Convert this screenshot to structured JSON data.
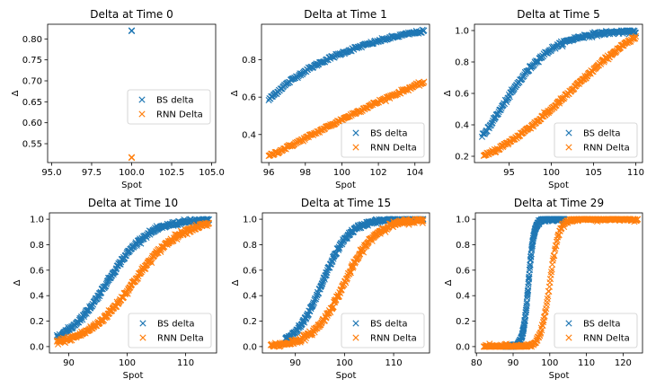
{
  "chart_data": [
    {
      "type": "scatter",
      "title": "Delta at Time 0",
      "xlabel": "Spot",
      "ylabel": "Δ",
      "xlim": [
        94.75,
        105.25
      ],
      "ylim": [
        0.505,
        0.835
      ],
      "xticks": [
        95.0,
        97.5,
        100.0,
        102.5,
        105.0
      ],
      "xtick_labels": [
        "95.0",
        "97.5",
        "100.0",
        "102.5",
        "105.0"
      ],
      "yticks": [
        0.55,
        0.6,
        0.65,
        0.7,
        0.75,
        0.8
      ],
      "ytick_labels": [
        "0.55",
        "0.60",
        "0.65",
        "0.70",
        "0.75",
        "0.80"
      ],
      "legend": "center-right",
      "series": [
        {
          "name": "BS delta",
          "color": "#1f77b4",
          "marker": "x",
          "points": [
            [
              100.0,
              0.8194
            ],
            [
              100.0,
              0.8201
            ],
            [
              100.0,
              0.8188
            ]
          ]
        },
        {
          "name": "RNN Delta",
          "color": "#ff7f0e",
          "marker": "x",
          "points": [
            [
              100.0,
              0.5171
            ],
            [
              100.0,
              0.5178
            ],
            [
              100.0,
              0.5165
            ]
          ]
        }
      ]
    },
    {
      "type": "scatter",
      "title": "Delta at Time 1",
      "xlabel": "Spot",
      "ylabel": "Δ",
      "xlim": [
        95.6,
        104.8
      ],
      "ylim": [
        0.25,
        0.99
      ],
      "xticks": [
        96,
        98,
        100,
        102,
        104
      ],
      "xtick_labels": [
        "96",
        "98",
        "100",
        "102",
        "104"
      ],
      "yticks": [
        0.4,
        0.6,
        0.8
      ],
      "ytick_labels": [
        "0.4",
        "0.6",
        "0.8"
      ],
      "legend": "bottom-right",
      "series": [
        {
          "name": "BS delta",
          "color": "#1f77b4",
          "marker": "x",
          "curve": {
            "kind": "poly",
            "x": [
              96.0,
              98.0,
              100.0,
              102.0,
              104.0
            ],
            "y": [
              0.585,
              0.74,
              0.835,
              0.9,
              0.945
            ]
          },
          "x_range": [
            96.0,
            104.5
          ],
          "n": 200,
          "spread": 0.004
        },
        {
          "name": "RNN Delta",
          "color": "#ff7f0e",
          "marker": "x",
          "curve": {
            "kind": "poly",
            "x": [
              96.0,
              98.0,
              100.0,
              102.0,
              104.0
            ],
            "y": [
              0.285,
              0.38,
              0.48,
              0.575,
              0.66
            ]
          },
          "x_range": [
            96.0,
            104.5
          ],
          "n": 200,
          "spread": 0.004
        }
      ]
    },
    {
      "type": "scatter",
      "title": "Delta at Time 5",
      "xlabel": "Spot",
      "ylabel": "Δ",
      "xlim": [
        90.9,
        110.8
      ],
      "ylim": [
        0.16,
        1.04
      ],
      "xticks": [
        95,
        100,
        105,
        110
      ],
      "xtick_labels": [
        "95",
        "100",
        "105",
        "110"
      ],
      "yticks": [
        0.2,
        0.4,
        0.6,
        0.8,
        1.0
      ],
      "ytick_labels": [
        "0.2",
        "0.4",
        "0.6",
        "0.8",
        "1.0"
      ],
      "legend": "bottom-right",
      "series": [
        {
          "name": "BS delta",
          "color": "#1f77b4",
          "marker": "x",
          "curve": {
            "kind": "sigmoid",
            "mid": 94.0,
            "width": 3.0,
            "lo": 0.0,
            "hi": 1.0
          },
          "x_range": [
            91.8,
            110.0
          ],
          "n": 240,
          "spread": 0.006
        },
        {
          "name": "RNN Delta",
          "color": "#ff7f0e",
          "marker": "x",
          "curve": {
            "kind": "poly",
            "x": [
              92.0,
              95.0,
              100.0,
              105.0,
              110.0
            ],
            "y": [
              0.2,
              0.29,
              0.5,
              0.75,
              0.955
            ]
          },
          "x_range": [
            92.0,
            110.0
          ],
          "n": 240,
          "spread": 0.006
        }
      ]
    },
    {
      "type": "scatter",
      "title": "Delta at Time 10",
      "xlabel": "Spot",
      "ylabel": "Δ",
      "xlim": [
        86.7,
        115.3
      ],
      "ylim": [
        -0.05,
        1.05
      ],
      "xticks": [
        90,
        100,
        110
      ],
      "xtick_labels": [
        "90",
        "100",
        "110"
      ],
      "yticks": [
        0.0,
        0.2,
        0.4,
        0.6,
        0.8,
        1.0
      ],
      "ytick_labels": [
        "0.0",
        "0.2",
        "0.4",
        "0.6",
        "0.8",
        "1.0"
      ],
      "legend": "bottom-right",
      "series": [
        {
          "name": "BS delta",
          "color": "#1f77b4",
          "marker": "x",
          "curve": {
            "kind": "sigmoid",
            "mid": 96.5,
            "width": 3.5,
            "lo": 0.0,
            "hi": 1.0
          },
          "x_range": [
            88.0,
            114.0
          ],
          "n": 300,
          "spread": 0.008
        },
        {
          "name": "RNN Delta",
          "color": "#ff7f0e",
          "marker": "x",
          "curve": {
            "kind": "sigmoid",
            "mid": 101.0,
            "width": 4.0,
            "lo": 0.0,
            "hi": 1.0
          },
          "x_range": [
            88.0,
            114.0
          ],
          "n": 300,
          "spread": 0.01
        }
      ]
    },
    {
      "type": "scatter",
      "title": "Delta at Time 15",
      "xlabel": "Spot",
      "ylabel": "Δ",
      "xlim": [
        83.3,
        117.3
      ],
      "ylim": [
        -0.05,
        1.05
      ],
      "xticks": [
        90,
        100,
        110
      ],
      "xtick_labels": [
        "90",
        "100",
        "110"
      ],
      "yticks": [
        0.0,
        0.2,
        0.4,
        0.6,
        0.8,
        1.0
      ],
      "ytick_labels": [
        "0.0",
        "0.2",
        "0.4",
        "0.6",
        "0.8",
        "1.0"
      ],
      "legend": "bottom-right",
      "series": [
        {
          "name": "BS delta",
          "color": "#1f77b4",
          "marker": "x",
          "curve": {
            "kind": "sigmoid",
            "mid": 95.5,
            "width": 2.7,
            "lo": 0.0,
            "hi": 1.0
          },
          "x_range": [
            88.0,
            116.0
          ],
          "n": 300,
          "spread": 0.008
        },
        {
          "name": "RNN Delta",
          "color": "#ff7f0e",
          "marker": "x",
          "curve": {
            "kind": "sigmoid",
            "mid": 100.0,
            "width": 3.2,
            "lo": 0.0,
            "hi": 1.0
          },
          "x_range": [
            85.0,
            116.0
          ],
          "n": 300,
          "spread": 0.01
        }
      ]
    },
    {
      "type": "scatter",
      "title": "Delta at Time 29",
      "xlabel": "Spot",
      "ylabel": "Δ",
      "xlim": [
        79.7,
        125.3
      ],
      "ylim": [
        -0.05,
        1.05
      ],
      "xticks": [
        80,
        90,
        100,
        110,
        120
      ],
      "xtick_labels": [
        "80",
        "90",
        "100",
        "110",
        "120"
      ],
      "yticks": [
        0.0,
        0.2,
        0.4,
        0.6,
        0.8,
        1.0
      ],
      "ytick_labels": [
        "0.0",
        "0.2",
        "0.4",
        "0.6",
        "0.8",
        "1.0"
      ],
      "legend": "bottom-right",
      "series": [
        {
          "name": "BS delta",
          "color": "#1f77b4",
          "marker": "x",
          "curve": {
            "kind": "sigmoid",
            "mid": 94.2,
            "width": 0.75,
            "lo": 0.0,
            "hi": 1.0
          },
          "x_range": [
            88.0,
            104.0
          ],
          "n": 320,
          "spread": 0.006
        },
        {
          "name": "RNN Delta",
          "color": "#ff7f0e",
          "marker": "x",
          "curve": {
            "kind": "sigmoid",
            "mid": 100.0,
            "width": 1.2,
            "lo": 0.0,
            "hi": 1.0
          },
          "x_range": [
            82.0,
            124.0
          ],
          "n": 320,
          "spread": 0.008
        }
      ]
    }
  ]
}
